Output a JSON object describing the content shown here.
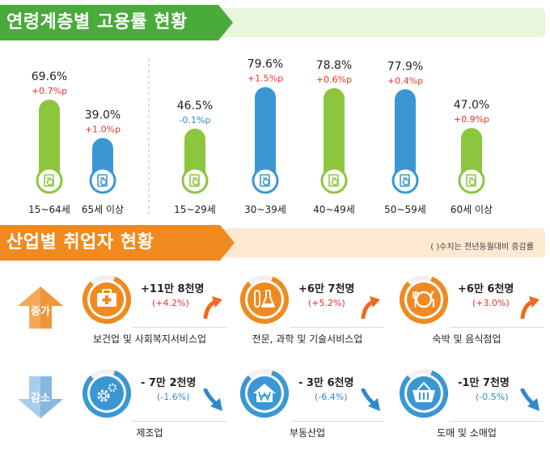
{
  "section1": {
    "title": "연령계층별 고용률 현황"
  },
  "section2": {
    "title": "산업별 취업자 현황",
    "note": "( )수치는 전년동월대비 증감률"
  },
  "colors": {
    "green": "#8cc63f",
    "blue": "#3a97d4",
    "up_red": "#e8322e",
    "down_blue": "#2e8ad0",
    "orange": "#f08a1e"
  },
  "chart_data": {
    "type": "bar",
    "categories": [
      "15~64세",
      "65세 이상",
      "15~29세",
      "30~39세",
      "40~49세",
      "50~59세",
      "60세 이상"
    ],
    "values": [
      69.6,
      39.0,
      46.5,
      79.6,
      78.8,
      77.9,
      47.0
    ],
    "value_labels": [
      "69.6%",
      "39.0%",
      "46.5%",
      "79.6%",
      "78.8%",
      "77.9%",
      "47.0%"
    ],
    "changes": [
      "+0.7%p",
      "+1.0%p",
      "-0.1%p",
      "+1.5%p",
      "+0.6%p",
      "+0.4%p",
      "+0.9%p"
    ],
    "bar_colors": [
      "#8cc63f",
      "#3a97d4",
      "#8cc63f",
      "#3a97d4",
      "#8cc63f",
      "#3a97d4",
      "#8cc63f"
    ],
    "ylim": [
      0,
      100
    ],
    "grid": false
  },
  "industry": {
    "increase_label": "증가",
    "decrease_label": "감소",
    "increase": [
      {
        "name": "보건업 및 사회복지서비스업",
        "value": "+11만 8천명",
        "pct": "(+4.2%)",
        "icon": "first-aid-kit-icon"
      },
      {
        "name": "전문, 과학 및 기술서비스업",
        "value": "+6만 7천명",
        "pct": "(+5.2%)",
        "icon": "lab-flask-icon"
      },
      {
        "name": "숙박 및 음식점업",
        "value": "+6만 6천명",
        "pct": "(+3.0%)",
        "icon": "dining-plate-icon"
      }
    ],
    "decrease": [
      {
        "name": "제조업",
        "value": "- 7만 2천명",
        "pct": "(-1.6%)",
        "icon": "gears-icon"
      },
      {
        "name": "부동산업",
        "value": "- 3만 6천명",
        "pct": "(-6.4%)",
        "icon": "house-won-icon"
      },
      {
        "name": "도매 및 소매업",
        "value": "-1만 7천명",
        "pct": "(-0.5%)",
        "icon": "shopping-basket-icon"
      }
    ]
  }
}
